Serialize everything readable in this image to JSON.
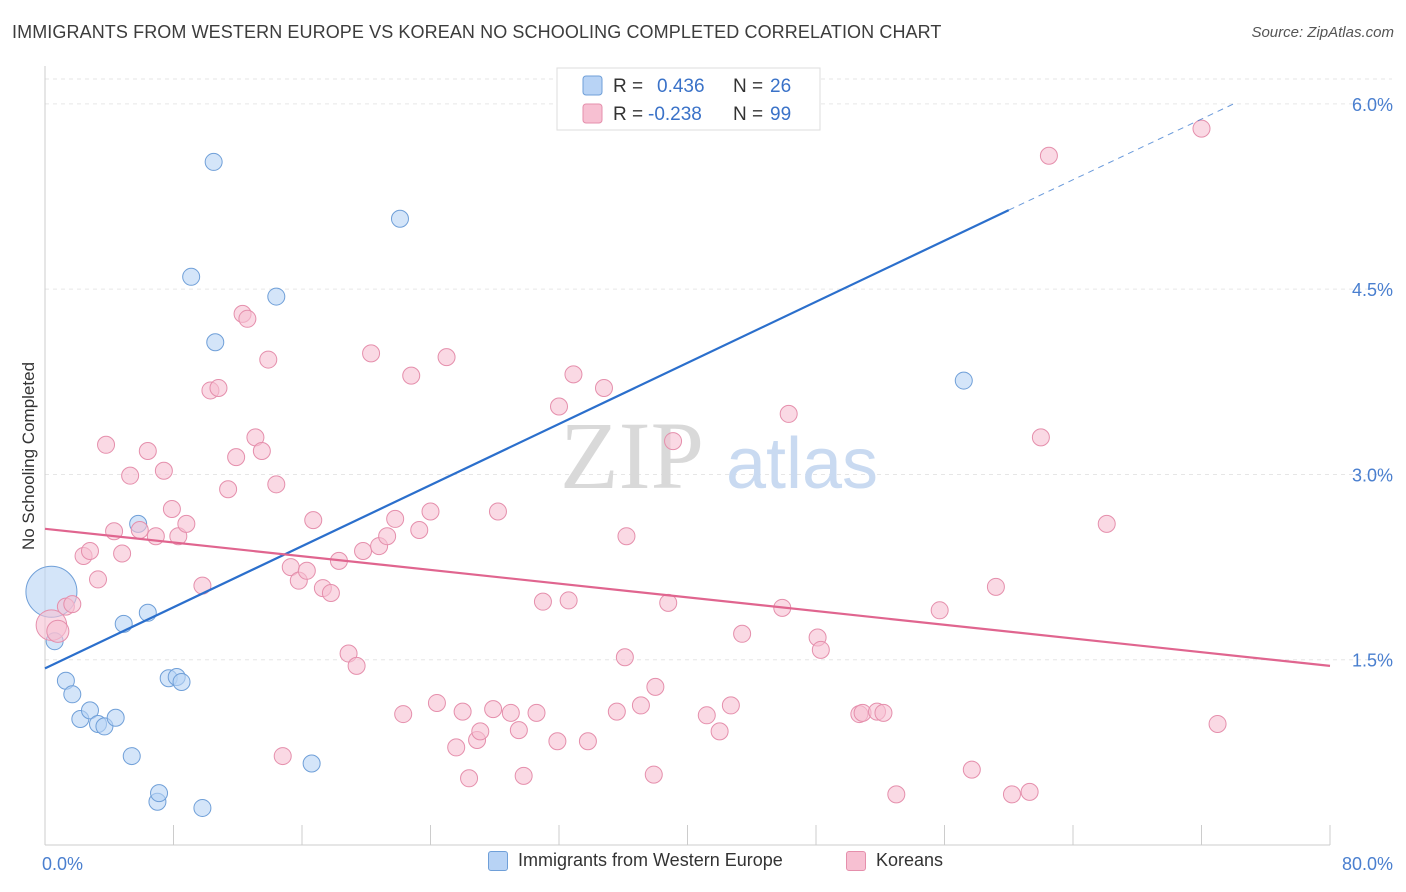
{
  "title": "IMMIGRANTS FROM WESTERN EUROPE VS KOREAN NO SCHOOLING COMPLETED CORRELATION CHART",
  "source": "Source: ZipAtlas.com",
  "watermark": {
    "zip": "ZIP",
    "atlas": "atlas"
  },
  "colors": {
    "blue_fill": "#b8d3f5",
    "blue_stroke": "#6f9fd8",
    "blue_line": "#2b6fcc",
    "pink_fill": "#f7c0d2",
    "pink_stroke": "#e58fac",
    "pink_line": "#e0658f",
    "axis_text_blue": "#4a7fcf",
    "grid": "#e6e6e6"
  },
  "legend": {
    "rows": [
      {
        "r_label": "R =",
        "r_value": "0.436",
        "n_label": "N =",
        "n_value": "26"
      },
      {
        "r_label": "R =",
        "r_value": "-0.238",
        "n_label": "N =",
        "n_value": "99"
      }
    ]
  },
  "legend_bottom": {
    "series1": "Immigrants from Western Europe",
    "series2": "Koreans"
  },
  "chart_data": {
    "type": "scatter",
    "xlabel": "",
    "ylabel": "No Schooling Completed",
    "xlim": [
      0,
      80
    ],
    "ylim": [
      0,
      6.25
    ],
    "x_tick_labels": [
      {
        "value": 0,
        "label": "0.0%"
      },
      {
        "value": 80,
        "label": "80.0%"
      }
    ],
    "y_tick_labels": [
      {
        "value": 1.5,
        "label": "1.5%"
      },
      {
        "value": 3.0,
        "label": "3.0%"
      },
      {
        "value": 4.5,
        "label": "4.5%"
      },
      {
        "value": 6.0,
        "label": "6.0%"
      }
    ],
    "x_minor_ticks": [
      8,
      16,
      24,
      32,
      40,
      48,
      56,
      64,
      72,
      80
    ],
    "series": [
      {
        "name": "Immigrants from Western Europe",
        "color": "blue",
        "trend": {
          "x0": 0,
          "y0": 1.43,
          "x1": 60,
          "y1": 5.14,
          "dash_to_x": 74,
          "dash_to_y": 6.0
        },
        "points": [
          [
            0.4,
            2.05,
            3
          ],
          [
            0.6,
            1.65,
            1
          ],
          [
            1.3,
            1.33,
            1
          ],
          [
            1.7,
            1.22,
            1
          ],
          [
            2.2,
            1.02,
            1
          ],
          [
            2.8,
            1.09,
            1
          ],
          [
            3.3,
            0.98,
            1
          ],
          [
            3.7,
            0.96,
            1
          ],
          [
            4.4,
            1.03,
            1
          ],
          [
            4.9,
            1.79,
            1
          ],
          [
            5.4,
            0.72,
            1
          ],
          [
            5.8,
            2.6,
            1
          ],
          [
            6.4,
            1.88,
            1
          ],
          [
            7.0,
            0.35,
            1
          ],
          [
            7.1,
            0.42,
            1
          ],
          [
            7.7,
            1.35,
            1
          ],
          [
            8.2,
            1.36,
            1
          ],
          [
            8.5,
            1.32,
            1
          ],
          [
            9.1,
            4.6,
            1
          ],
          [
            9.8,
            0.3,
            1
          ],
          [
            10.6,
            4.07,
            1
          ],
          [
            10.5,
            5.53,
            1
          ],
          [
            14.4,
            4.44,
            1
          ],
          [
            16.6,
            0.66,
            1
          ],
          [
            22.1,
            5.07,
            1
          ],
          [
            57.2,
            3.76,
            1
          ]
        ]
      },
      {
        "name": "Koreans",
        "color": "pink",
        "trend": {
          "x0": 0,
          "y0": 2.56,
          "x1": 80,
          "y1": 1.45
        },
        "points": [
          [
            0.4,
            1.78,
            1.8
          ],
          [
            0.8,
            1.73,
            1.3
          ],
          [
            1.3,
            1.93,
            1
          ],
          [
            1.7,
            1.95,
            1
          ],
          [
            2.4,
            2.34,
            1
          ],
          [
            2.8,
            2.38,
            1
          ],
          [
            3.3,
            2.15,
            1
          ],
          [
            3.8,
            3.24,
            1
          ],
          [
            4.3,
            2.54,
            1
          ],
          [
            4.8,
            2.36,
            1
          ],
          [
            5.3,
            2.99,
            1
          ],
          [
            5.9,
            2.55,
            1
          ],
          [
            6.4,
            3.19,
            1
          ],
          [
            6.9,
            2.5,
            1
          ],
          [
            7.4,
            3.03,
            1
          ],
          [
            7.9,
            2.72,
            1
          ],
          [
            8.3,
            2.5,
            1
          ],
          [
            8.8,
            2.6,
            1
          ],
          [
            9.8,
            2.1,
            1
          ],
          [
            10.3,
            3.68,
            1
          ],
          [
            10.8,
            3.7,
            1
          ],
          [
            11.4,
            2.88,
            1
          ],
          [
            11.9,
            3.14,
            1
          ],
          [
            12.3,
            4.3,
            1
          ],
          [
            12.6,
            4.26,
            1
          ],
          [
            13.1,
            3.3,
            1
          ],
          [
            13.5,
            3.19,
            1
          ],
          [
            13.9,
            3.93,
            1
          ],
          [
            14.4,
            2.92,
            1
          ],
          [
            14.8,
            0.72,
            1
          ],
          [
            15.3,
            2.25,
            1
          ],
          [
            15.8,
            2.14,
            1
          ],
          [
            16.3,
            2.22,
            1
          ],
          [
            16.7,
            2.63,
            1
          ],
          [
            17.3,
            2.08,
            1
          ],
          [
            17.8,
            2.04,
            1
          ],
          [
            18.3,
            2.3,
            1
          ],
          [
            18.9,
            1.55,
            1
          ],
          [
            19.4,
            1.45,
            1
          ],
          [
            19.8,
            2.38,
            1
          ],
          [
            20.3,
            3.98,
            1
          ],
          [
            20.8,
            2.42,
            1
          ],
          [
            21.3,
            2.5,
            1
          ],
          [
            21.8,
            2.64,
            1
          ],
          [
            22.3,
            1.06,
            1
          ],
          [
            22.8,
            3.8,
            1
          ],
          [
            23.3,
            2.55,
            1
          ],
          [
            24.0,
            2.7,
            1
          ],
          [
            24.4,
            1.15,
            1
          ],
          [
            25.0,
            3.95,
            1
          ],
          [
            25.6,
            0.79,
            1
          ],
          [
            26.0,
            1.08,
            1
          ],
          [
            26.4,
            0.54,
            1
          ],
          [
            26.9,
            0.85,
            1
          ],
          [
            27.1,
            0.92,
            1
          ],
          [
            27.9,
            1.1,
            1
          ],
          [
            28.2,
            2.7,
            1
          ],
          [
            29.0,
            1.07,
            1
          ],
          [
            29.5,
            0.93,
            1
          ],
          [
            29.8,
            0.56,
            1
          ],
          [
            30.6,
            1.07,
            1
          ],
          [
            31.0,
            1.97,
            1
          ],
          [
            31.9,
            0.84,
            1
          ],
          [
            32.0,
            3.55,
            1
          ],
          [
            32.6,
            1.98,
            1
          ],
          [
            32.9,
            3.81,
            1
          ],
          [
            33.8,
            0.84,
            1
          ],
          [
            34.8,
            3.7,
            1
          ],
          [
            35.6,
            1.08,
            1
          ],
          [
            36.1,
            1.52,
            1
          ],
          [
            36.2,
            2.5,
            1
          ],
          [
            37.1,
            1.13,
            1
          ],
          [
            37.9,
            0.57,
            1
          ],
          [
            38.0,
            1.28,
            1
          ],
          [
            38.8,
            1.96,
            1
          ],
          [
            39.1,
            3.27,
            1
          ],
          [
            41.2,
            1.05,
            1
          ],
          [
            42.0,
            0.92,
            1
          ],
          [
            42.7,
            1.13,
            1
          ],
          [
            43.4,
            1.71,
            1
          ],
          [
            45.9,
            1.92,
            1
          ],
          [
            46.3,
            3.49,
            1
          ],
          [
            48.1,
            1.68,
            1
          ],
          [
            48.3,
            1.58,
            1
          ],
          [
            50.7,
            1.06,
            1
          ],
          [
            50.9,
            1.07,
            1
          ],
          [
            51.8,
            1.08,
            1
          ],
          [
            52.2,
            1.07,
            1
          ],
          [
            53.0,
            0.41,
            1
          ],
          [
            55.7,
            1.9,
            1
          ],
          [
            57.7,
            0.61,
            1
          ],
          [
            59.2,
            2.09,
            1
          ],
          [
            60.2,
            0.41,
            1
          ],
          [
            61.3,
            0.43,
            1
          ],
          [
            62.0,
            3.3,
            1
          ],
          [
            62.5,
            5.58,
            1
          ],
          [
            66.1,
            2.6,
            1
          ],
          [
            72.0,
            5.8,
            1
          ],
          [
            73.0,
            0.98,
            1
          ]
        ]
      }
    ]
  }
}
